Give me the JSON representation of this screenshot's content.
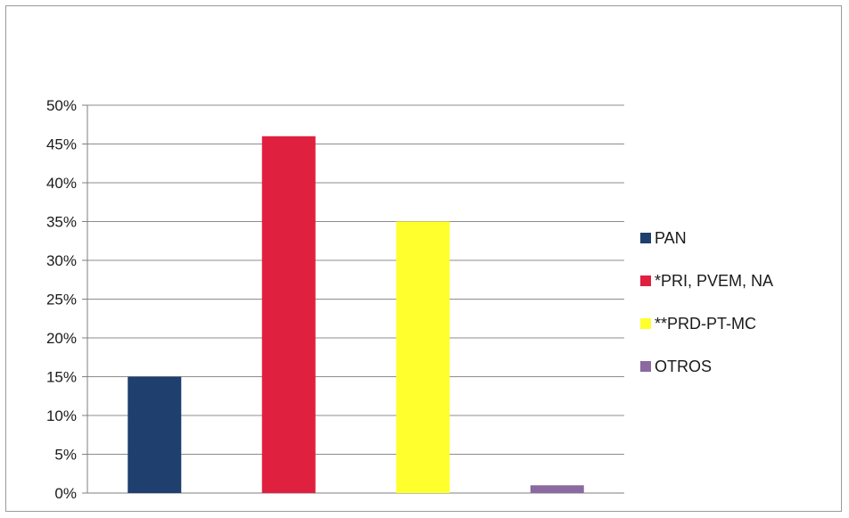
{
  "chart_data": {
    "type": "bar",
    "title": "",
    "xlabel": "",
    "ylabel": "",
    "categories": [
      "PAN",
      "*PRI, PVEM, NA",
      "**PRD-PT-MC",
      "OTROS"
    ],
    "values": [
      15,
      46,
      35,
      1
    ],
    "unit": "%",
    "ylim": [
      0,
      50
    ],
    "y_ticks": [
      "0%",
      "5%",
      "10%",
      "15%",
      "20%",
      "25%",
      "30%",
      "35%",
      "40%",
      "45%",
      "50%"
    ],
    "grid": true,
    "legend_position": "right",
    "colors": [
      "#1f3f6e",
      "#e0203f",
      "#ffff2e",
      "#8a6aa0"
    ],
    "legend": [
      {
        "label": "PAN",
        "color": "#1f3f6e"
      },
      {
        "label": "*PRI, PVEM, NA",
        "color": "#e0203f"
      },
      {
        "label": "**PRD-PT-MC",
        "color": "#ffff2e"
      },
      {
        "label": "OTROS",
        "color": "#8a6aa0"
      }
    ]
  }
}
